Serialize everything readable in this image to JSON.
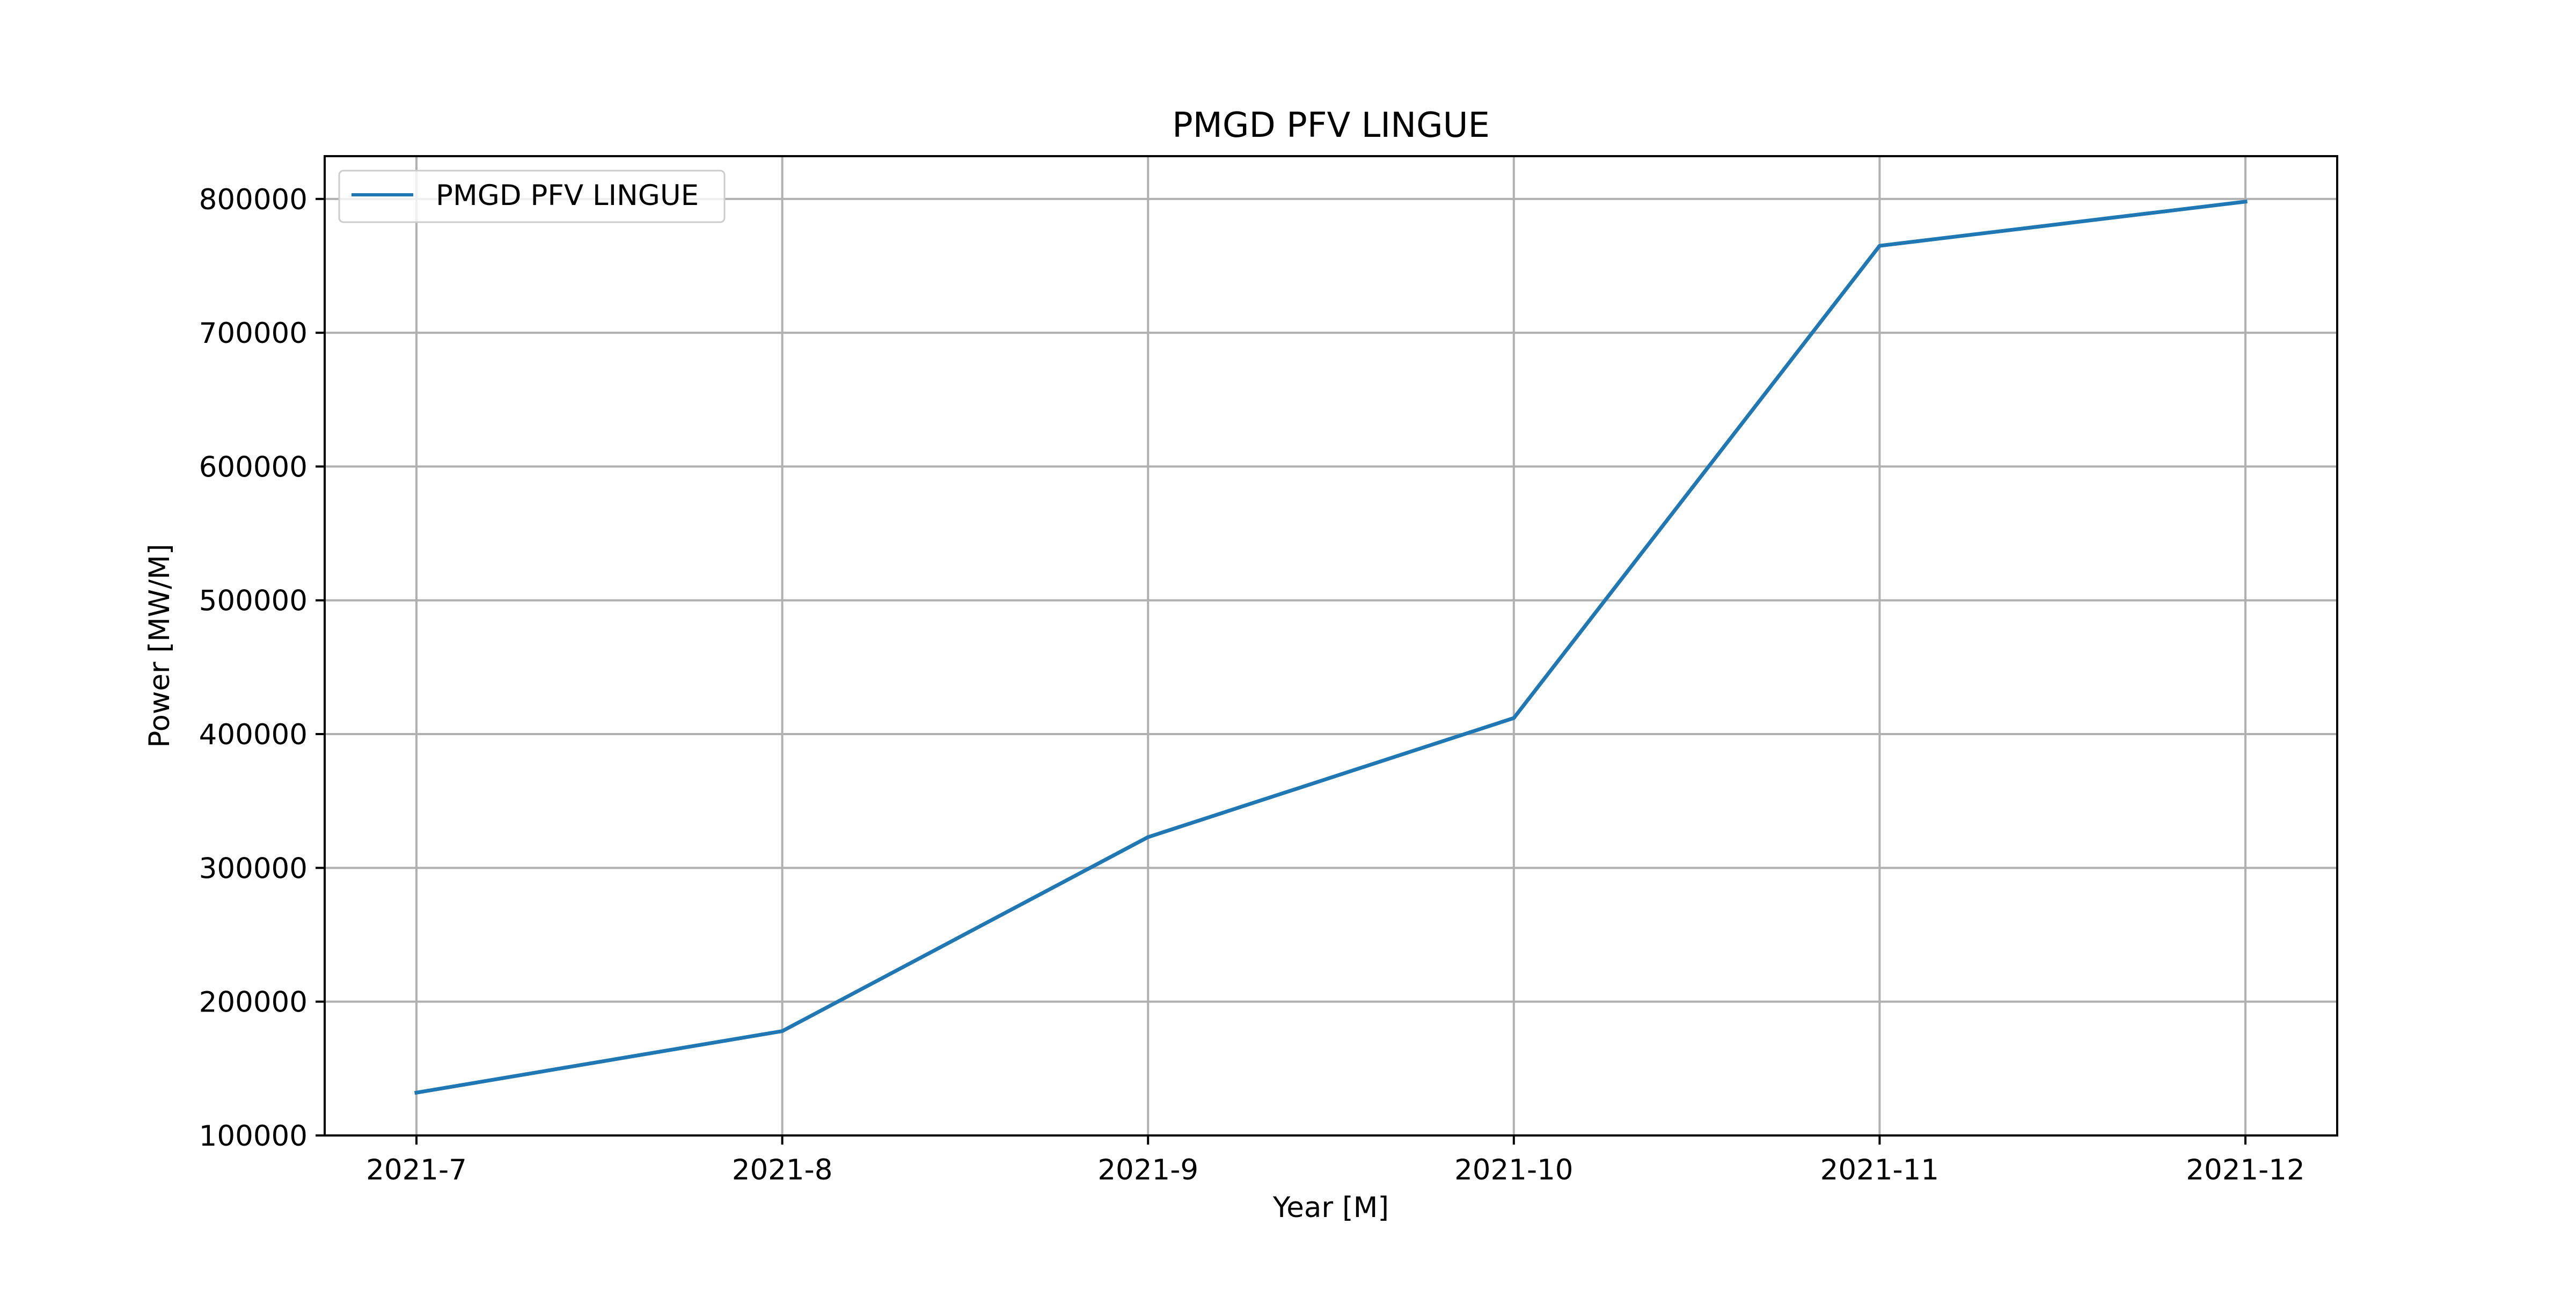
{
  "chart_data": {
    "type": "line",
    "title": "PMGD PFV LINGUE",
    "xlabel": "Year [M]",
    "ylabel": "Power [MW/M]",
    "categories": [
      "2021-7",
      "2021-8",
      "2021-9",
      "2021-10",
      "2021-11",
      "2021-12"
    ],
    "series": [
      {
        "name": "PMGD PFV LINGUE",
        "color": "#1f77b4",
        "values": [
          132000,
          178000,
          323000,
          412000,
          765000,
          798000
        ]
      }
    ],
    "yticks": [
      100000,
      200000,
      300000,
      400000,
      500000,
      600000,
      700000,
      800000
    ],
    "ytick_labels": [
      "100000",
      "200000",
      "300000",
      "400000",
      "500000",
      "600000",
      "700000",
      "800000"
    ],
    "ylim": [
      100000,
      832000
    ],
    "grid": true,
    "legend_position": "upper left"
  }
}
